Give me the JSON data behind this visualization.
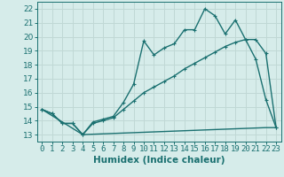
{
  "xlabel": "Humidex (Indice chaleur)",
  "bg_color": "#d6ecea",
  "grid_color": "#c0d8d5",
  "line_color": "#1a7070",
  "xlim": [
    -0.5,
    23.5
  ],
  "ylim": [
    12.5,
    22.5
  ],
  "xticks": [
    0,
    1,
    2,
    3,
    4,
    5,
    6,
    7,
    8,
    9,
    10,
    11,
    12,
    13,
    14,
    15,
    16,
    17,
    18,
    19,
    20,
    21,
    22,
    23
  ],
  "yticks": [
    13,
    14,
    15,
    16,
    17,
    18,
    19,
    20,
    21,
    22
  ],
  "line1_x": [
    0,
    1,
    2,
    3,
    4,
    5,
    6,
    7,
    8,
    9,
    10,
    11,
    12,
    13,
    14,
    15,
    16,
    17,
    18,
    19,
    20,
    21,
    22,
    23
  ],
  "line1_y": [
    14.8,
    14.5,
    13.8,
    13.8,
    13.0,
    13.9,
    14.1,
    14.3,
    15.3,
    16.6,
    19.7,
    18.7,
    19.2,
    19.5,
    20.5,
    20.5,
    22.0,
    21.5,
    20.2,
    21.2,
    19.8,
    18.4,
    15.5,
    13.5
  ],
  "line2_x": [
    0,
    1,
    2,
    3,
    4,
    5,
    6,
    7,
    8,
    9,
    10,
    11,
    12,
    13,
    14,
    15,
    16,
    17,
    18,
    19,
    20,
    21,
    22,
    23
  ],
  "line2_y": [
    14.8,
    14.5,
    13.8,
    13.8,
    13.0,
    13.8,
    14.0,
    14.2,
    14.8,
    15.4,
    16.0,
    16.4,
    16.8,
    17.2,
    17.7,
    18.1,
    18.5,
    18.9,
    19.3,
    19.6,
    19.8,
    19.8,
    18.8,
    13.5
  ],
  "line3_x": [
    0,
    4,
    22,
    23
  ],
  "line3_y": [
    14.8,
    13.0,
    13.5,
    13.5
  ],
  "marker_size": 3.0,
  "linewidth": 1.0,
  "tick_fontsize": 6.5,
  "xlabel_fontsize": 7.5
}
